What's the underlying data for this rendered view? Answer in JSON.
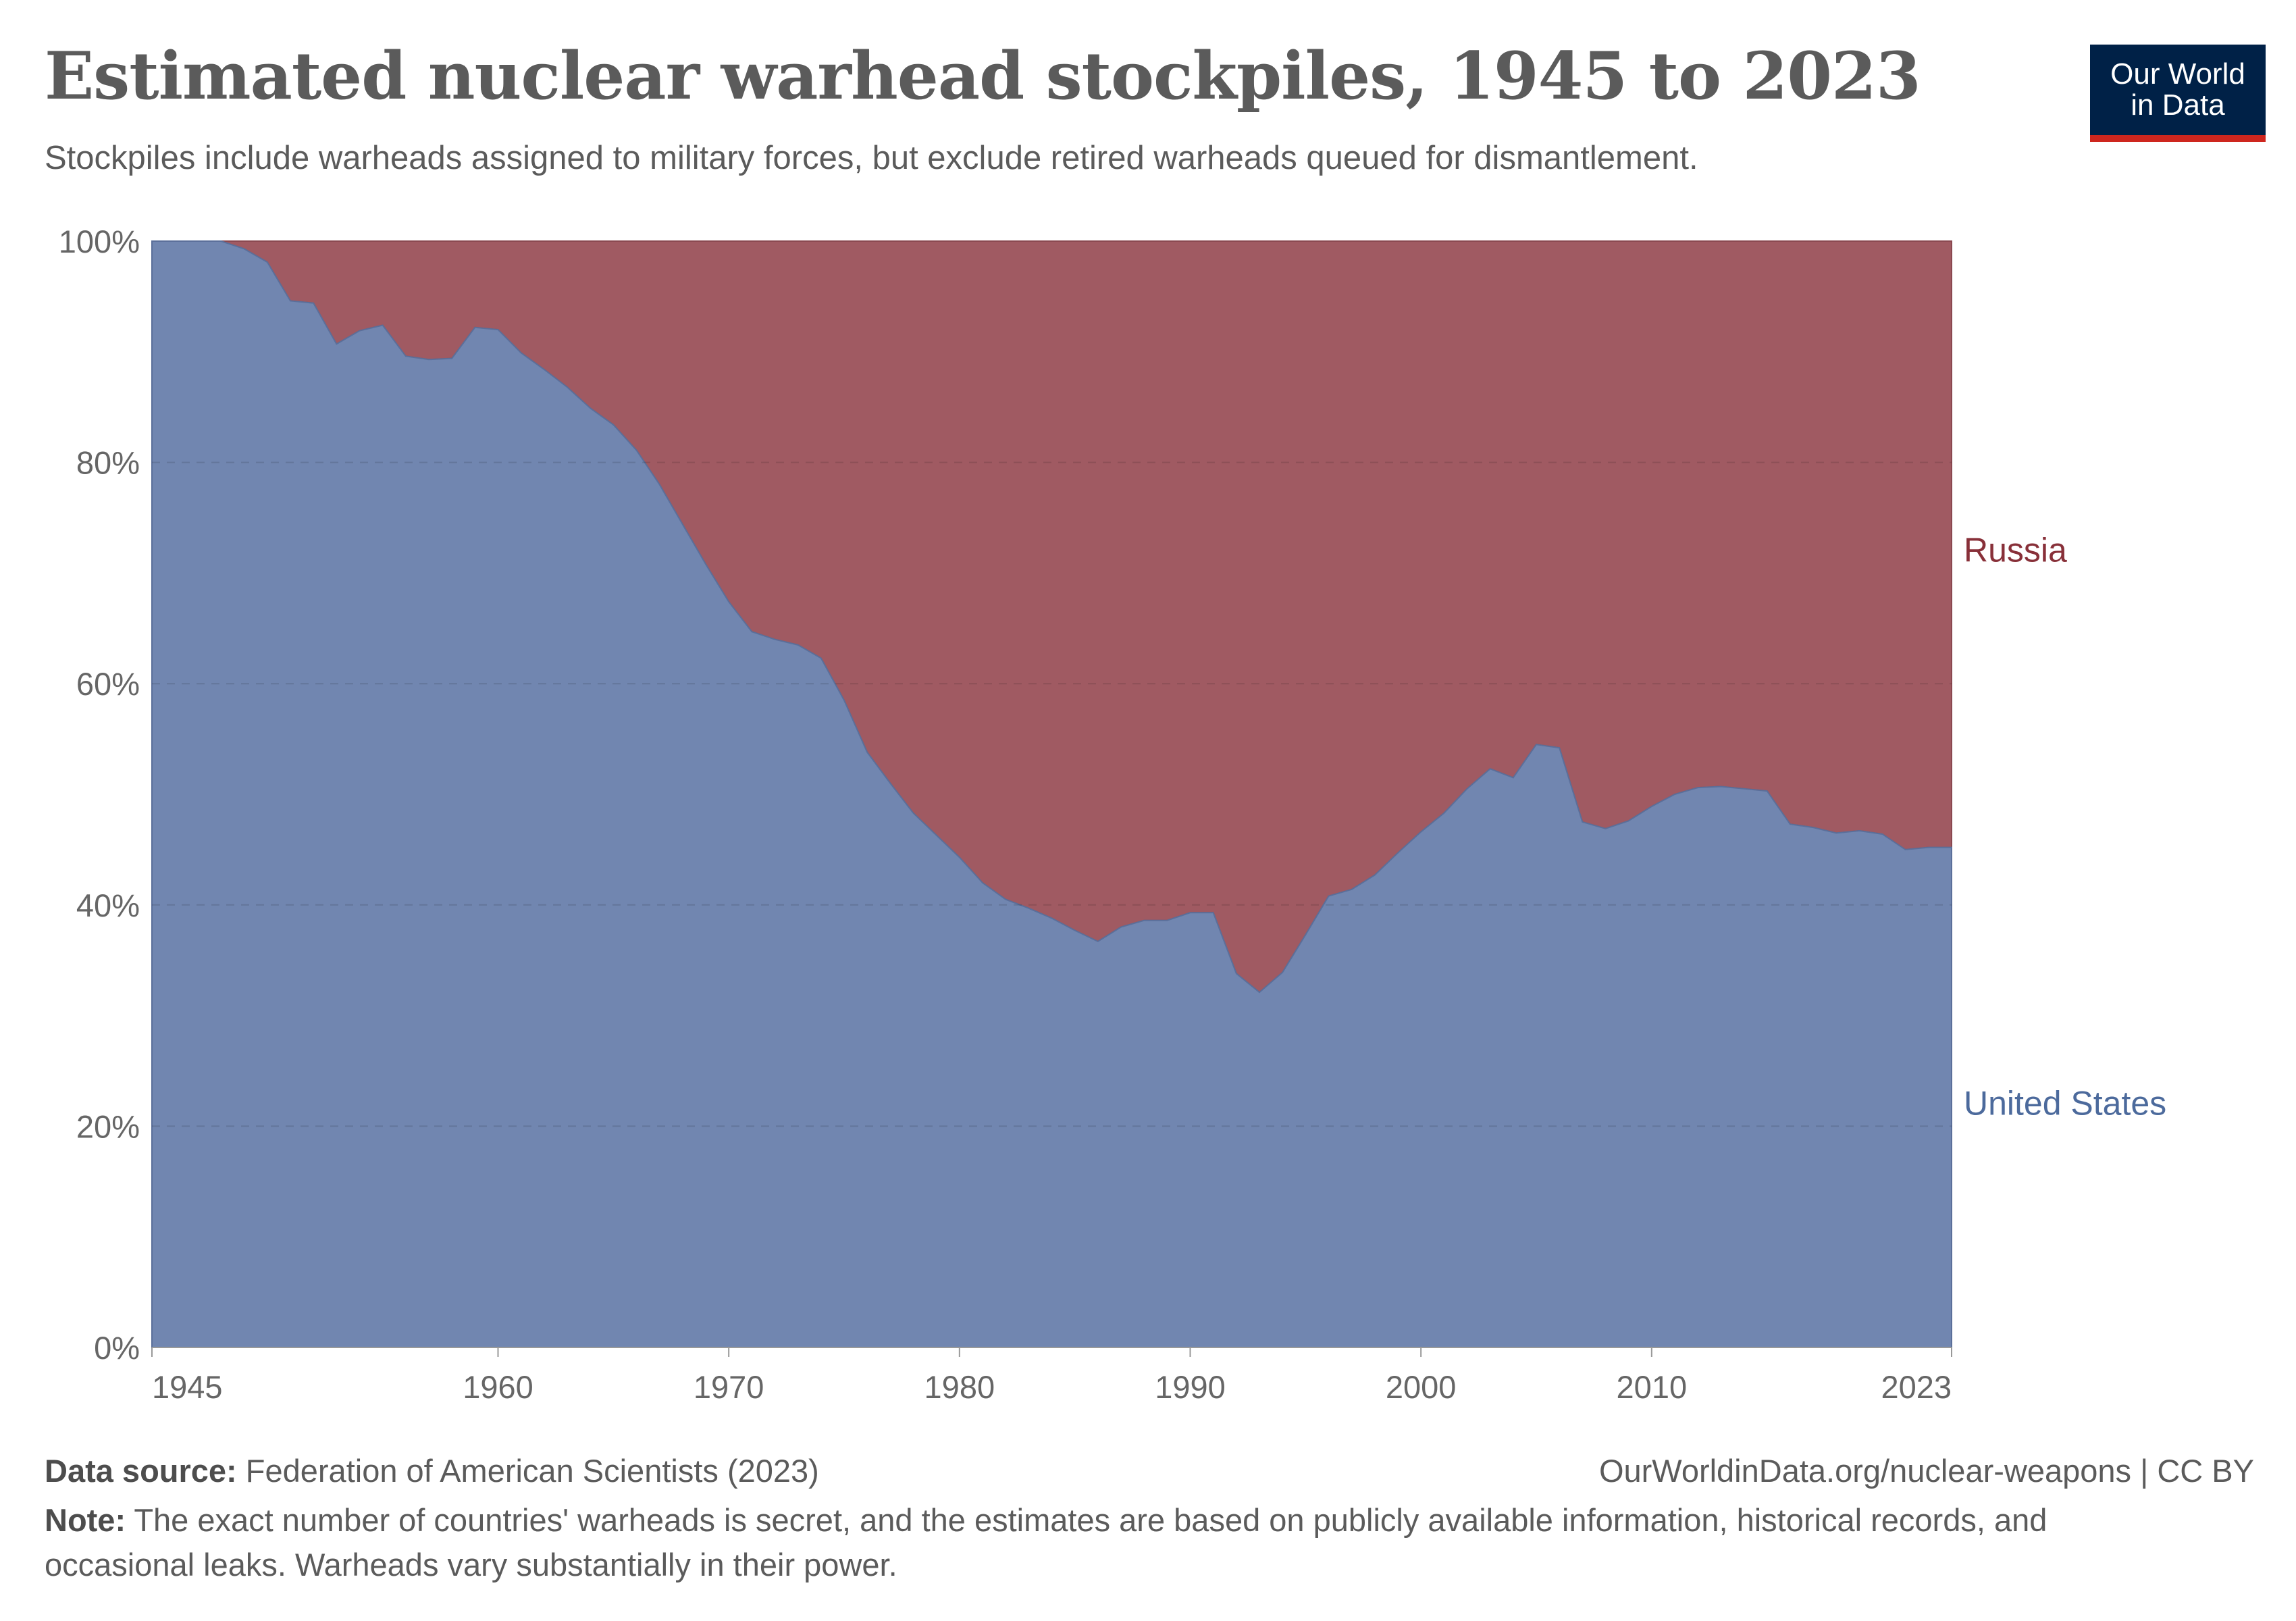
{
  "title": "Estimated nuclear warhead stockpiles, 1945 to 2023",
  "subtitle": "Stockpiles include warheads assigned to military forces, but exclude retired warheads queued for dismantlement.",
  "logo": {
    "line1": "Our World",
    "line2": "in Data"
  },
  "footer": {
    "source_label": "Data source:",
    "source_text": "Federation of American Scientists (2023)",
    "url": "OurWorldinData.org/nuclear-weapons | CC BY",
    "note_label": "Note:",
    "note_text": "The exact number of countries' warheads is secret, and the estimates are based on publicly available information, historical records, and occasional leaks. Warheads vary substantially in their power."
  },
  "colors": {
    "us": "#7186b0",
    "russia": "#a05a62",
    "us_label": "#4c6a9c",
    "russia_label": "#883039",
    "axis_text": "#666666",
    "grid": "#dddddd"
  },
  "chart_data": {
    "type": "area",
    "stacked": true,
    "relative": true,
    "x": [
      1945,
      1946,
      1947,
      1948,
      1949,
      1950,
      1951,
      1952,
      1953,
      1954,
      1955,
      1956,
      1957,
      1958,
      1959,
      1960,
      1961,
      1962,
      1963,
      1964,
      1965,
      1966,
      1967,
      1968,
      1969,
      1970,
      1971,
      1972,
      1973,
      1974,
      1975,
      1976,
      1977,
      1978,
      1979,
      1980,
      1981,
      1982,
      1983,
      1984,
      1985,
      1986,
      1987,
      1988,
      1989,
      1990,
      1991,
      1992,
      1993,
      1994,
      1995,
      1996,
      1997,
      1998,
      1999,
      2000,
      2001,
      2002,
      2003,
      2004,
      2005,
      2006,
      2007,
      2008,
      2009,
      2010,
      2011,
      2012,
      2013,
      2014,
      2015,
      2016,
      2017,
      2018,
      2019,
      2020,
      2021,
      2022,
      2023
    ],
    "series": [
      {
        "name": "United States",
        "values": [
          100,
          100,
          100,
          100,
          99.3,
          98.1,
          94.6,
          94.4,
          90.7,
          91.9,
          92.4,
          89.6,
          89.3,
          89.4,
          92.2,
          92.0,
          89.9,
          88.4,
          86.8,
          84.9,
          83.4,
          81.1,
          78.0,
          74.4,
          70.8,
          67.4,
          64.7,
          64.0,
          63.5,
          62.3,
          58.5,
          53.8,
          51.0,
          48.3,
          46.3,
          44.3,
          42.0,
          40.5,
          39.7,
          38.8,
          37.7,
          36.7,
          38.0,
          38.6,
          38.6,
          39.3,
          39.3,
          33.8,
          32.1,
          33.9,
          37.3,
          40.8,
          41.4,
          42.7,
          44.7,
          46.6,
          48.3,
          50.5,
          52.3,
          51.5,
          54.5,
          54.2,
          47.5,
          46.9,
          47.6,
          48.9,
          50.0,
          50.6,
          50.7,
          50.5,
          50.3,
          47.3,
          47.0,
          46.5,
          46.7,
          46.4,
          45.0,
          45.2,
          45.2
        ]
      },
      {
        "name": "Russia",
        "values": [
          0,
          0,
          0,
          0,
          0.7,
          1.9,
          5.4,
          5.6,
          9.3,
          8.1,
          7.6,
          10.4,
          10.7,
          10.6,
          7.8,
          8.0,
          10.1,
          11.6,
          13.2,
          15.1,
          16.6,
          18.9,
          22.0,
          25.6,
          29.2,
          32.6,
          35.3,
          36.0,
          36.5,
          37.7,
          41.5,
          46.2,
          49.0,
          51.7,
          53.7,
          55.7,
          58.0,
          59.5,
          60.3,
          61.2,
          62.3,
          63.3,
          62.0,
          61.4,
          61.4,
          60.7,
          60.7,
          66.2,
          67.9,
          66.1,
          62.7,
          59.2,
          58.6,
          57.3,
          55.3,
          53.4,
          51.7,
          49.5,
          47.7,
          48.5,
          45.5,
          45.8,
          52.5,
          53.1,
          52.4,
          51.1,
          50.0,
          49.4,
          49.3,
          49.5,
          49.7,
          52.7,
          53.0,
          53.5,
          53.3,
          53.6,
          55.0,
          54.8,
          54.8
        ]
      }
    ],
    "x_ticks": [
      "1945",
      "1960",
      "1970",
      "1980",
      "1990",
      "2000",
      "2010",
      "2023"
    ],
    "y_ticks": [
      "0%",
      "20%",
      "40%",
      "60%",
      "80%",
      "100%"
    ],
    "xlim": [
      1945,
      2023
    ],
    "ylim": [
      0,
      100
    ],
    "grid": "horizontal dashed",
    "legend": "inline labels at right"
  }
}
